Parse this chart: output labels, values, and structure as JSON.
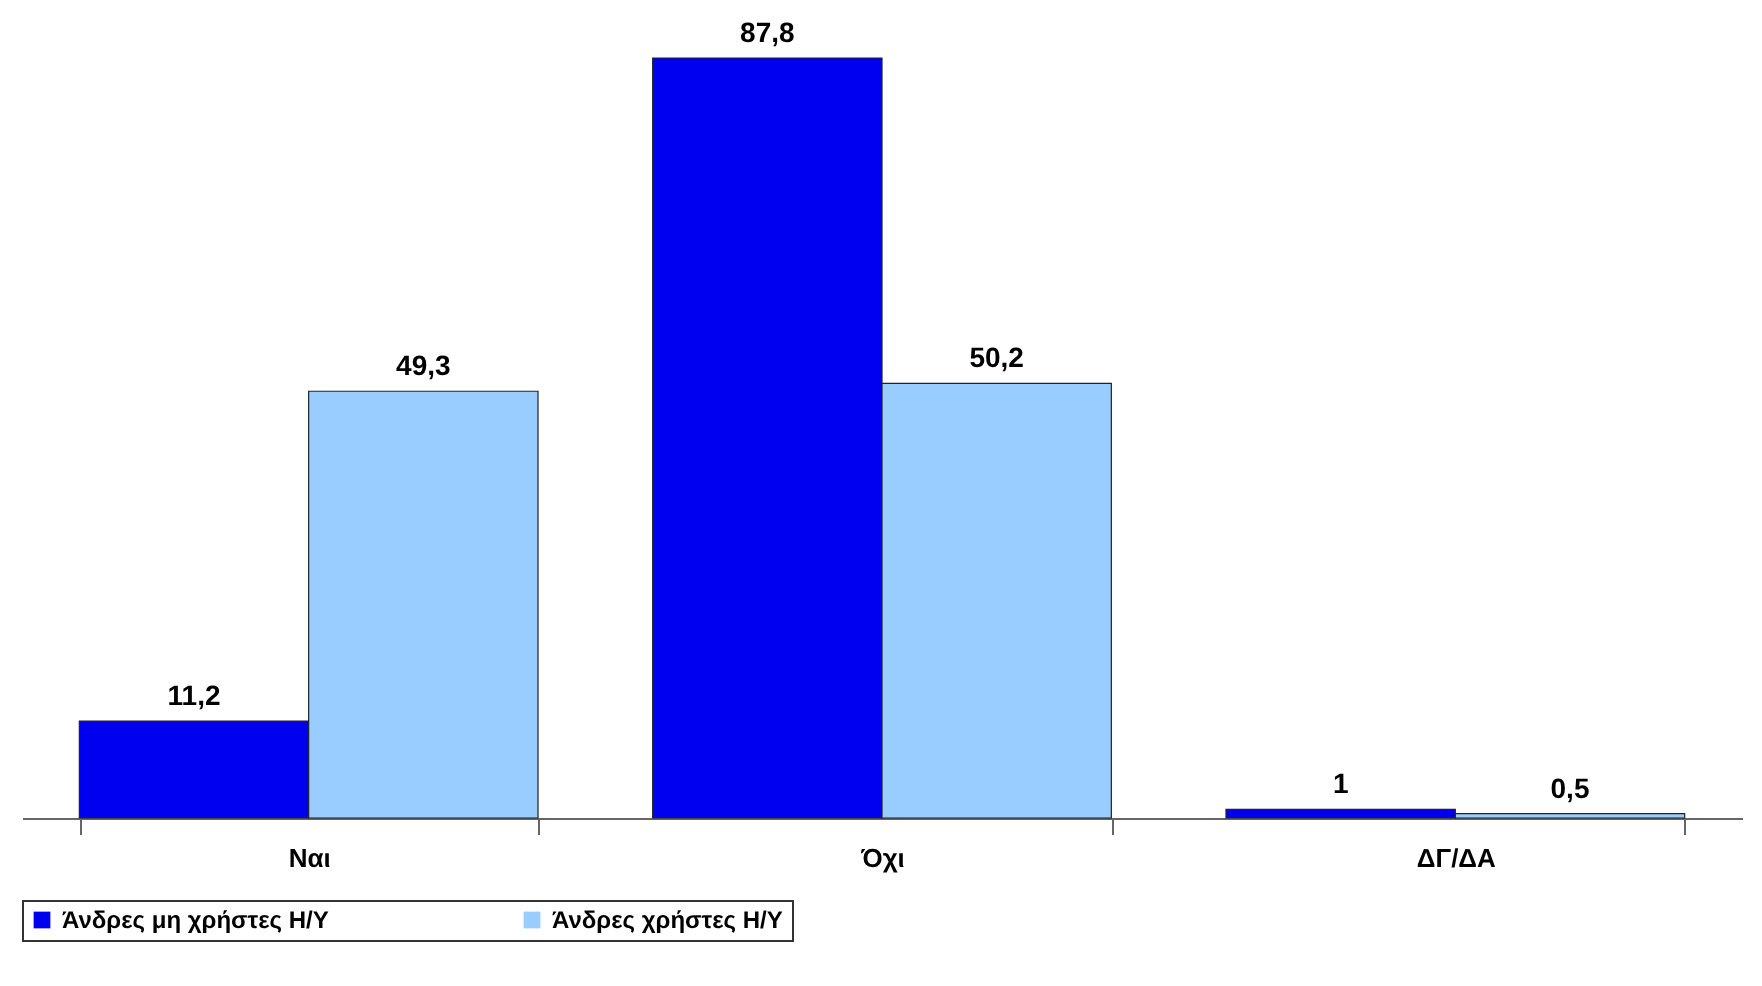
{
  "chart_data": {
    "type": "bar",
    "categories": [
      "Ναι",
      "Όχι",
      "ΔΓ/ΔΑ"
    ],
    "series": [
      {
        "name": "Άνδρες μη χρήστες Η/Υ",
        "color": "#0000f0",
        "values": [
          11.2,
          87.8,
          1
        ],
        "value_labels": [
          "11,2",
          "87,8",
          "1"
        ]
      },
      {
        "name": "Άνδρες χρήστες Η/Υ",
        "color": "#99ccff",
        "values": [
          49.3,
          50.2,
          0.5
        ],
        "value_labels": [
          "49,3",
          "50,2",
          "0,5"
        ]
      }
    ],
    "legend": "bottom"
  }
}
